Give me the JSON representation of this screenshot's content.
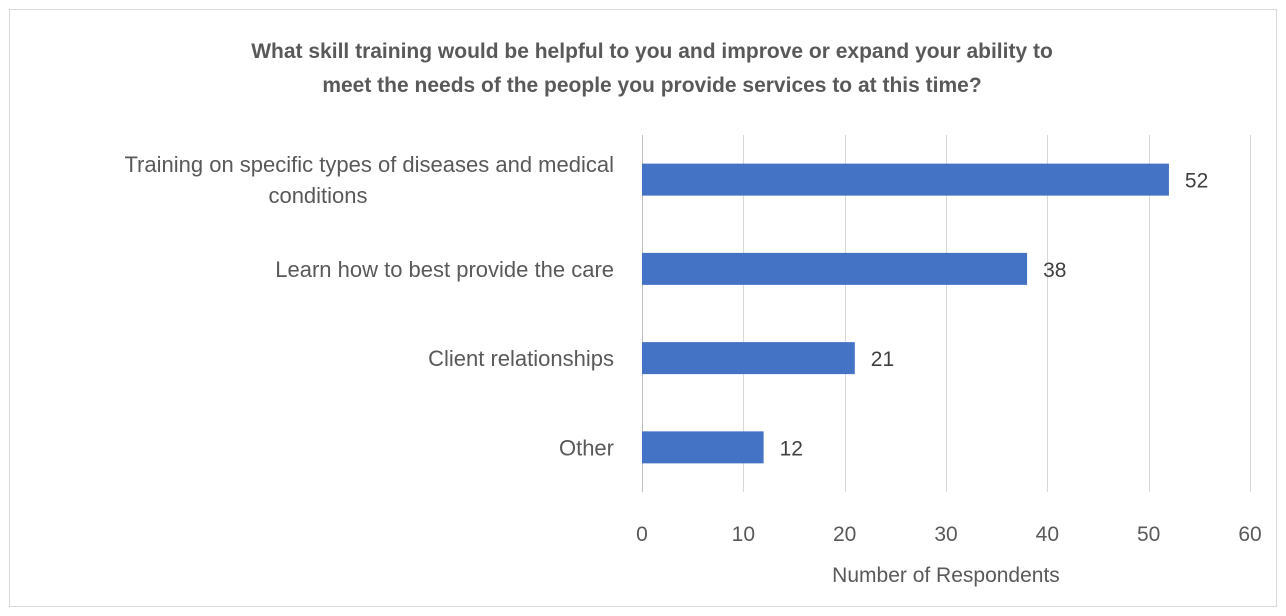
{
  "chart_data": {
    "type": "bar",
    "orientation": "horizontal",
    "title": "What skill training would be helpful to you and improve or expand your ability to meet the needs of the people you provide services to at this time?",
    "title_lines": [
      "What skill training would be helpful to you and improve or expand your ability to",
      "meet the needs of the people you provide services to at this time?"
    ],
    "categories": [
      "Training on specific types of diseases and medical conditions",
      "Learn how to best provide the care",
      "Client relationships",
      "Other"
    ],
    "category_lines": [
      [
        "Training on specific types of diseases and medical",
        "conditions"
      ],
      [
        "Learn how to best provide the care"
      ],
      [
        "Client relationships"
      ],
      [
        "Other"
      ]
    ],
    "values": [
      52,
      38,
      21,
      12
    ],
    "data_labels": [
      "52",
      "38",
      "21",
      "12"
    ],
    "xlabel": "Number of Respondents",
    "ylabel": "",
    "xlim": [
      0,
      60
    ],
    "x_ticks": [
      0,
      10,
      20,
      30,
      40,
      50,
      60
    ],
    "x_tick_labels": [
      "0",
      "10",
      "20",
      "30",
      "40",
      "50",
      "60"
    ],
    "grid": true,
    "legend": "none",
    "bar_color": "#4472c4"
  }
}
